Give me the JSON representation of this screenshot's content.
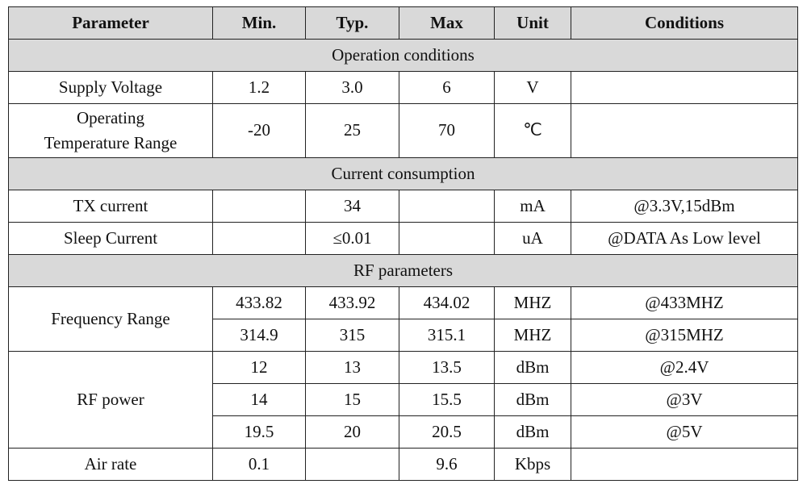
{
  "table": {
    "header": [
      "Parameter",
      "Min.",
      "Typ.",
      "Max",
      "Unit",
      "Conditions"
    ],
    "sections": [
      {
        "title": "Operation conditions",
        "groups": [
          {
            "parameter": "Supply Voltage",
            "rows": [
              [
                "1.2",
                "3.0",
                "6",
                "V",
                null
              ]
            ]
          },
          {
            "parameter": "Operating\nTemperature Range",
            "rows": [
              [
                "-20",
                "25",
                "70",
                "℃",
                null
              ]
            ]
          }
        ]
      },
      {
        "title": "Current consumption",
        "groups": [
          {
            "parameter": "TX current",
            "rows": [
              [
                null,
                "34",
                null,
                "mA",
                "@3.3V,15dBm"
              ]
            ]
          },
          {
            "parameter": "Sleep Current",
            "rows": [
              [
                null,
                "≤0.01",
                null,
                "uA",
                "@DATA As Low level"
              ]
            ]
          }
        ]
      },
      {
        "title": "RF parameters",
        "groups": [
          {
            "parameter": "Frequency Range",
            "rows": [
              [
                "433.82",
                "433.92",
                "434.02",
                "MHZ",
                "@433MHZ"
              ],
              [
                "314.9",
                "315",
                "315.1",
                "MHZ",
                "@315MHZ"
              ]
            ]
          },
          {
            "parameter": "RF power",
            "rows": [
              [
                "12",
                "13",
                "13.5",
                "dBm",
                "@2.4V"
              ],
              [
                "14",
                "15",
                "15.5",
                "dBm",
                "@3V"
              ],
              [
                "19.5",
                "20",
                "20.5",
                "dBm",
                "@5V"
              ]
            ]
          },
          {
            "parameter": "Air rate",
            "rows": [
              [
                "0.1",
                null,
                "9.6",
                "Kbps",
                null
              ]
            ]
          }
        ]
      }
    ]
  }
}
